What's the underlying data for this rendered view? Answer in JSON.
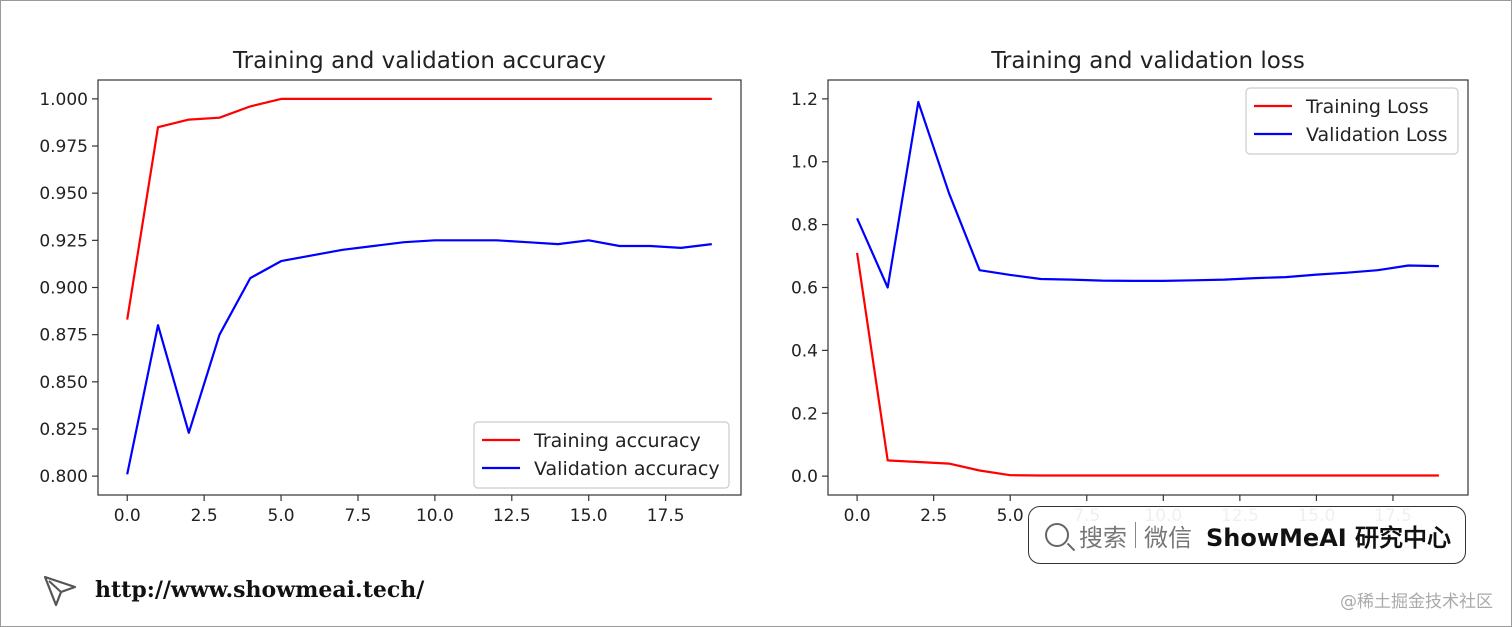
{
  "chart_data": [
    {
      "type": "line",
      "title": "Training and validation accuracy",
      "xlabel": "",
      "ylabel": "",
      "xlim": [
        -0.95,
        19.95
      ],
      "ylim": [
        0.79,
        1.01
      ],
      "xticks": [
        0,
        2.5,
        5,
        7.5,
        10,
        12.5,
        15,
        17.5
      ],
      "xtick_labels": [
        "0.0",
        "2.5",
        "5.0",
        "7.5",
        "10.0",
        "12.5",
        "15.0",
        "17.5"
      ],
      "yticks": [
        0.8,
        0.825,
        0.85,
        0.875,
        0.9,
        0.925,
        0.95,
        0.975,
        1.0
      ],
      "ytick_labels": [
        "0.800",
        "0.825",
        "0.850",
        "0.875",
        "0.900",
        "0.925",
        "0.950",
        "0.975",
        "1.000"
      ],
      "legend": "bottom-right",
      "grid": false,
      "x": [
        0,
        1,
        2,
        3,
        4,
        5,
        6,
        7,
        8,
        9,
        10,
        11,
        12,
        13,
        14,
        15,
        16,
        17,
        18,
        19
      ],
      "series": [
        {
          "name": "Training accuracy",
          "color": "#ff0000",
          "values": [
            0.883,
            0.985,
            0.989,
            0.99,
            0.996,
            1.0,
            1.0,
            1.0,
            1.0,
            1.0,
            1.0,
            1.0,
            1.0,
            1.0,
            1.0,
            1.0,
            1.0,
            1.0,
            1.0,
            1.0
          ]
        },
        {
          "name": "Validation accuracy",
          "color": "#0000ff",
          "values": [
            0.801,
            0.88,
            0.823,
            0.875,
            0.905,
            0.914,
            0.917,
            0.92,
            0.922,
            0.924,
            0.925,
            0.925,
            0.925,
            0.924,
            0.923,
            0.925,
            0.922,
            0.922,
            0.921,
            0.923
          ]
        }
      ]
    },
    {
      "type": "line",
      "title": "Training and validation loss",
      "xlabel": "",
      "ylabel": "",
      "xlim": [
        -0.95,
        19.95
      ],
      "ylim": [
        -0.06,
        1.26
      ],
      "xticks": [
        0,
        2.5,
        5,
        7.5,
        10,
        12.5,
        15,
        17.5
      ],
      "xtick_labels": [
        "0.0",
        "2.5",
        "5.0",
        "7.5",
        "10.0",
        "12.5",
        "15.0",
        "17.5"
      ],
      "yticks": [
        0,
        0.2,
        0.4,
        0.6,
        0.8,
        1.0,
        1.2
      ],
      "ytick_labels": [
        "0.0",
        "0.2",
        "0.4",
        "0.6",
        "0.8",
        "1.0",
        "1.2"
      ],
      "legend": "top-right",
      "grid": false,
      "x": [
        0,
        1,
        2,
        3,
        4,
        5,
        6,
        7,
        8,
        9,
        10,
        11,
        12,
        13,
        14,
        15,
        16,
        17,
        18,
        19
      ],
      "series": [
        {
          "name": "Training Loss",
          "color": "#ff0000",
          "values": [
            0.71,
            0.05,
            0.045,
            0.04,
            0.018,
            0.003,
            0.002,
            0.002,
            0.002,
            0.002,
            0.002,
            0.002,
            0.002,
            0.002,
            0.002,
            0.002,
            0.002,
            0.002,
            0.002,
            0.002
          ]
        },
        {
          "name": "Validation Loss",
          "color": "#0000ff",
          "values": [
            0.82,
            0.6,
            1.19,
            0.9,
            0.655,
            0.64,
            0.627,
            0.625,
            0.622,
            0.621,
            0.621,
            0.623,
            0.625,
            0.63,
            0.633,
            0.641,
            0.647,
            0.655,
            0.67,
            0.668
          ]
        }
      ]
    }
  ],
  "watermark": {
    "search_label": "搜索",
    "wechat_label": "微信",
    "brand": "ShowMeAI 研究中心"
  },
  "footer": {
    "url": "http://www.showmeai.tech/",
    "credit": "@稀土掘金技术社区"
  }
}
